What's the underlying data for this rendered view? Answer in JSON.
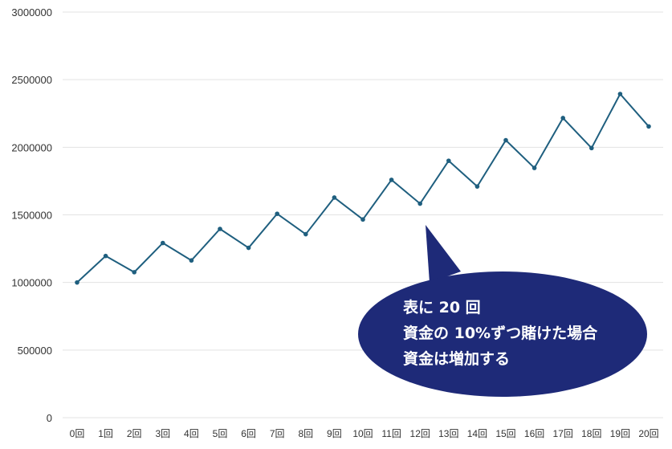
{
  "chart_data": {
    "type": "line",
    "title": "",
    "xlabel": "",
    "ylabel": "",
    "categories": [
      "0回",
      "1回",
      "2回",
      "3回",
      "4回",
      "5回",
      "6回",
      "7回",
      "8回",
      "9回",
      "10回",
      "11回",
      "12回",
      "13回",
      "14回",
      "15回",
      "16回",
      "17回",
      "18回",
      "19回",
      "20回"
    ],
    "series": [
      {
        "values": [
          1000000,
          1196000,
          1076000,
          1292000,
          1163000,
          1396000,
          1256000,
          1508000,
          1357000,
          1628000,
          1466000,
          1759000,
          1583000,
          1900000,
          1710000,
          2052000,
          1847000,
          2216000,
          1994000,
          2394000,
          2154000
        ]
      }
    ],
    "ylim": [
      0,
      3000000
    ],
    "yticks": [
      "0",
      "500000",
      "1000000",
      "1500000",
      "2000000",
      "2500000",
      "3000000"
    ],
    "grid": true,
    "colors": {
      "line": "#1f5f7f",
      "marker": "#1f5f7f",
      "callout": "#1e2a78"
    },
    "annotation": {
      "lines": [
        "表に 20 回",
        "資金の 10%ずつ賭けた場合",
        "資金は増加する"
      ]
    }
  }
}
